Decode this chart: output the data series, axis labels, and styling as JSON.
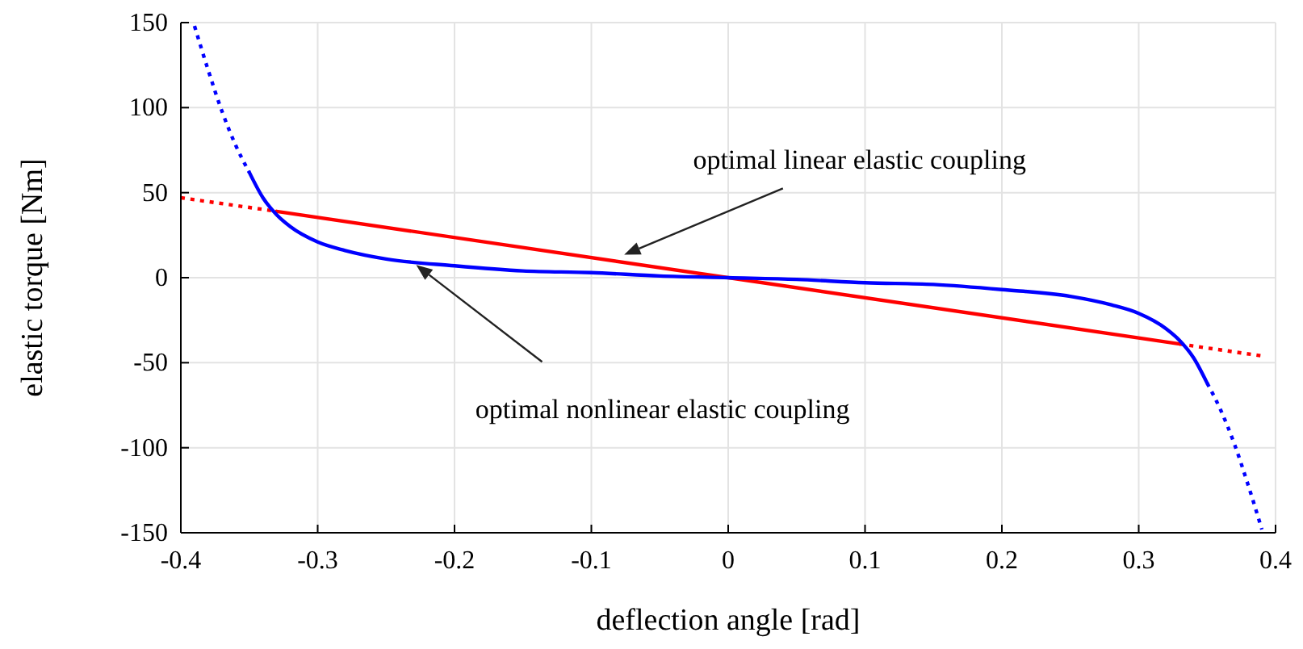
{
  "chart_data": {
    "type": "line",
    "xlabel": "deflection angle [rad]",
    "ylabel": "elastic torque [Nm]",
    "xlim": [
      -0.4,
      0.4
    ],
    "ylim": [
      -150,
      150
    ],
    "xticks": [
      -0.4,
      -0.3,
      -0.2,
      -0.1,
      0,
      0.1,
      0.2,
      0.3,
      0.4
    ],
    "yticks": [
      -150,
      -100,
      -50,
      0,
      50,
      100,
      150
    ],
    "grid": true,
    "marker": "none",
    "series": [
      {
        "color": "#ff0000",
        "line_style": "dotted",
        "x": [
          -0.4,
          -0.33
        ],
        "values": [
          47,
          39
        ]
      },
      {
        "color": "#ff0000",
        "line_style": "solid",
        "x": [
          -0.33,
          0.33
        ],
        "values": [
          39,
          -39
        ]
      },
      {
        "color": "#ff0000",
        "line_style": "dotted",
        "x": [
          0.33,
          0.39
        ],
        "values": [
          -39,
          -46
        ]
      },
      {
        "color": "#0000ff",
        "line_style": "dotted",
        "x": [
          -0.39,
          -0.38,
          -0.37,
          -0.36,
          -0.35
        ],
        "values": [
          148,
          122,
          98,
          78,
          62
        ]
      },
      {
        "color": "#0000ff",
        "line_style": "solid",
        "x": [
          -0.35,
          -0.34,
          -0.33,
          -0.32,
          -0.3,
          -0.28,
          -0.25,
          -0.2,
          -0.15,
          -0.1,
          -0.05,
          0,
          0.05,
          0.1,
          0.15,
          0.2,
          0.25,
          0.28,
          0.3,
          0.32,
          0.33,
          0.34,
          0.35
        ],
        "values": [
          62,
          47,
          37,
          30,
          21,
          16,
          11,
          7,
          4,
          3,
          1,
          0,
          -1,
          -3,
          -4,
          -7,
          -11,
          -16,
          -21,
          -30,
          -37,
          -47,
          -62
        ]
      },
      {
        "color": "#0000ff",
        "line_style": "dotted",
        "x": [
          0.35,
          0.36,
          0.37,
          0.38,
          0.39
        ],
        "values": [
          -62,
          -78,
          -98,
          -122,
          -148
        ]
      }
    ],
    "annotations": [
      "optimal linear elastic coupling",
      "optimal nonlinear elastic coupling"
    ]
  }
}
